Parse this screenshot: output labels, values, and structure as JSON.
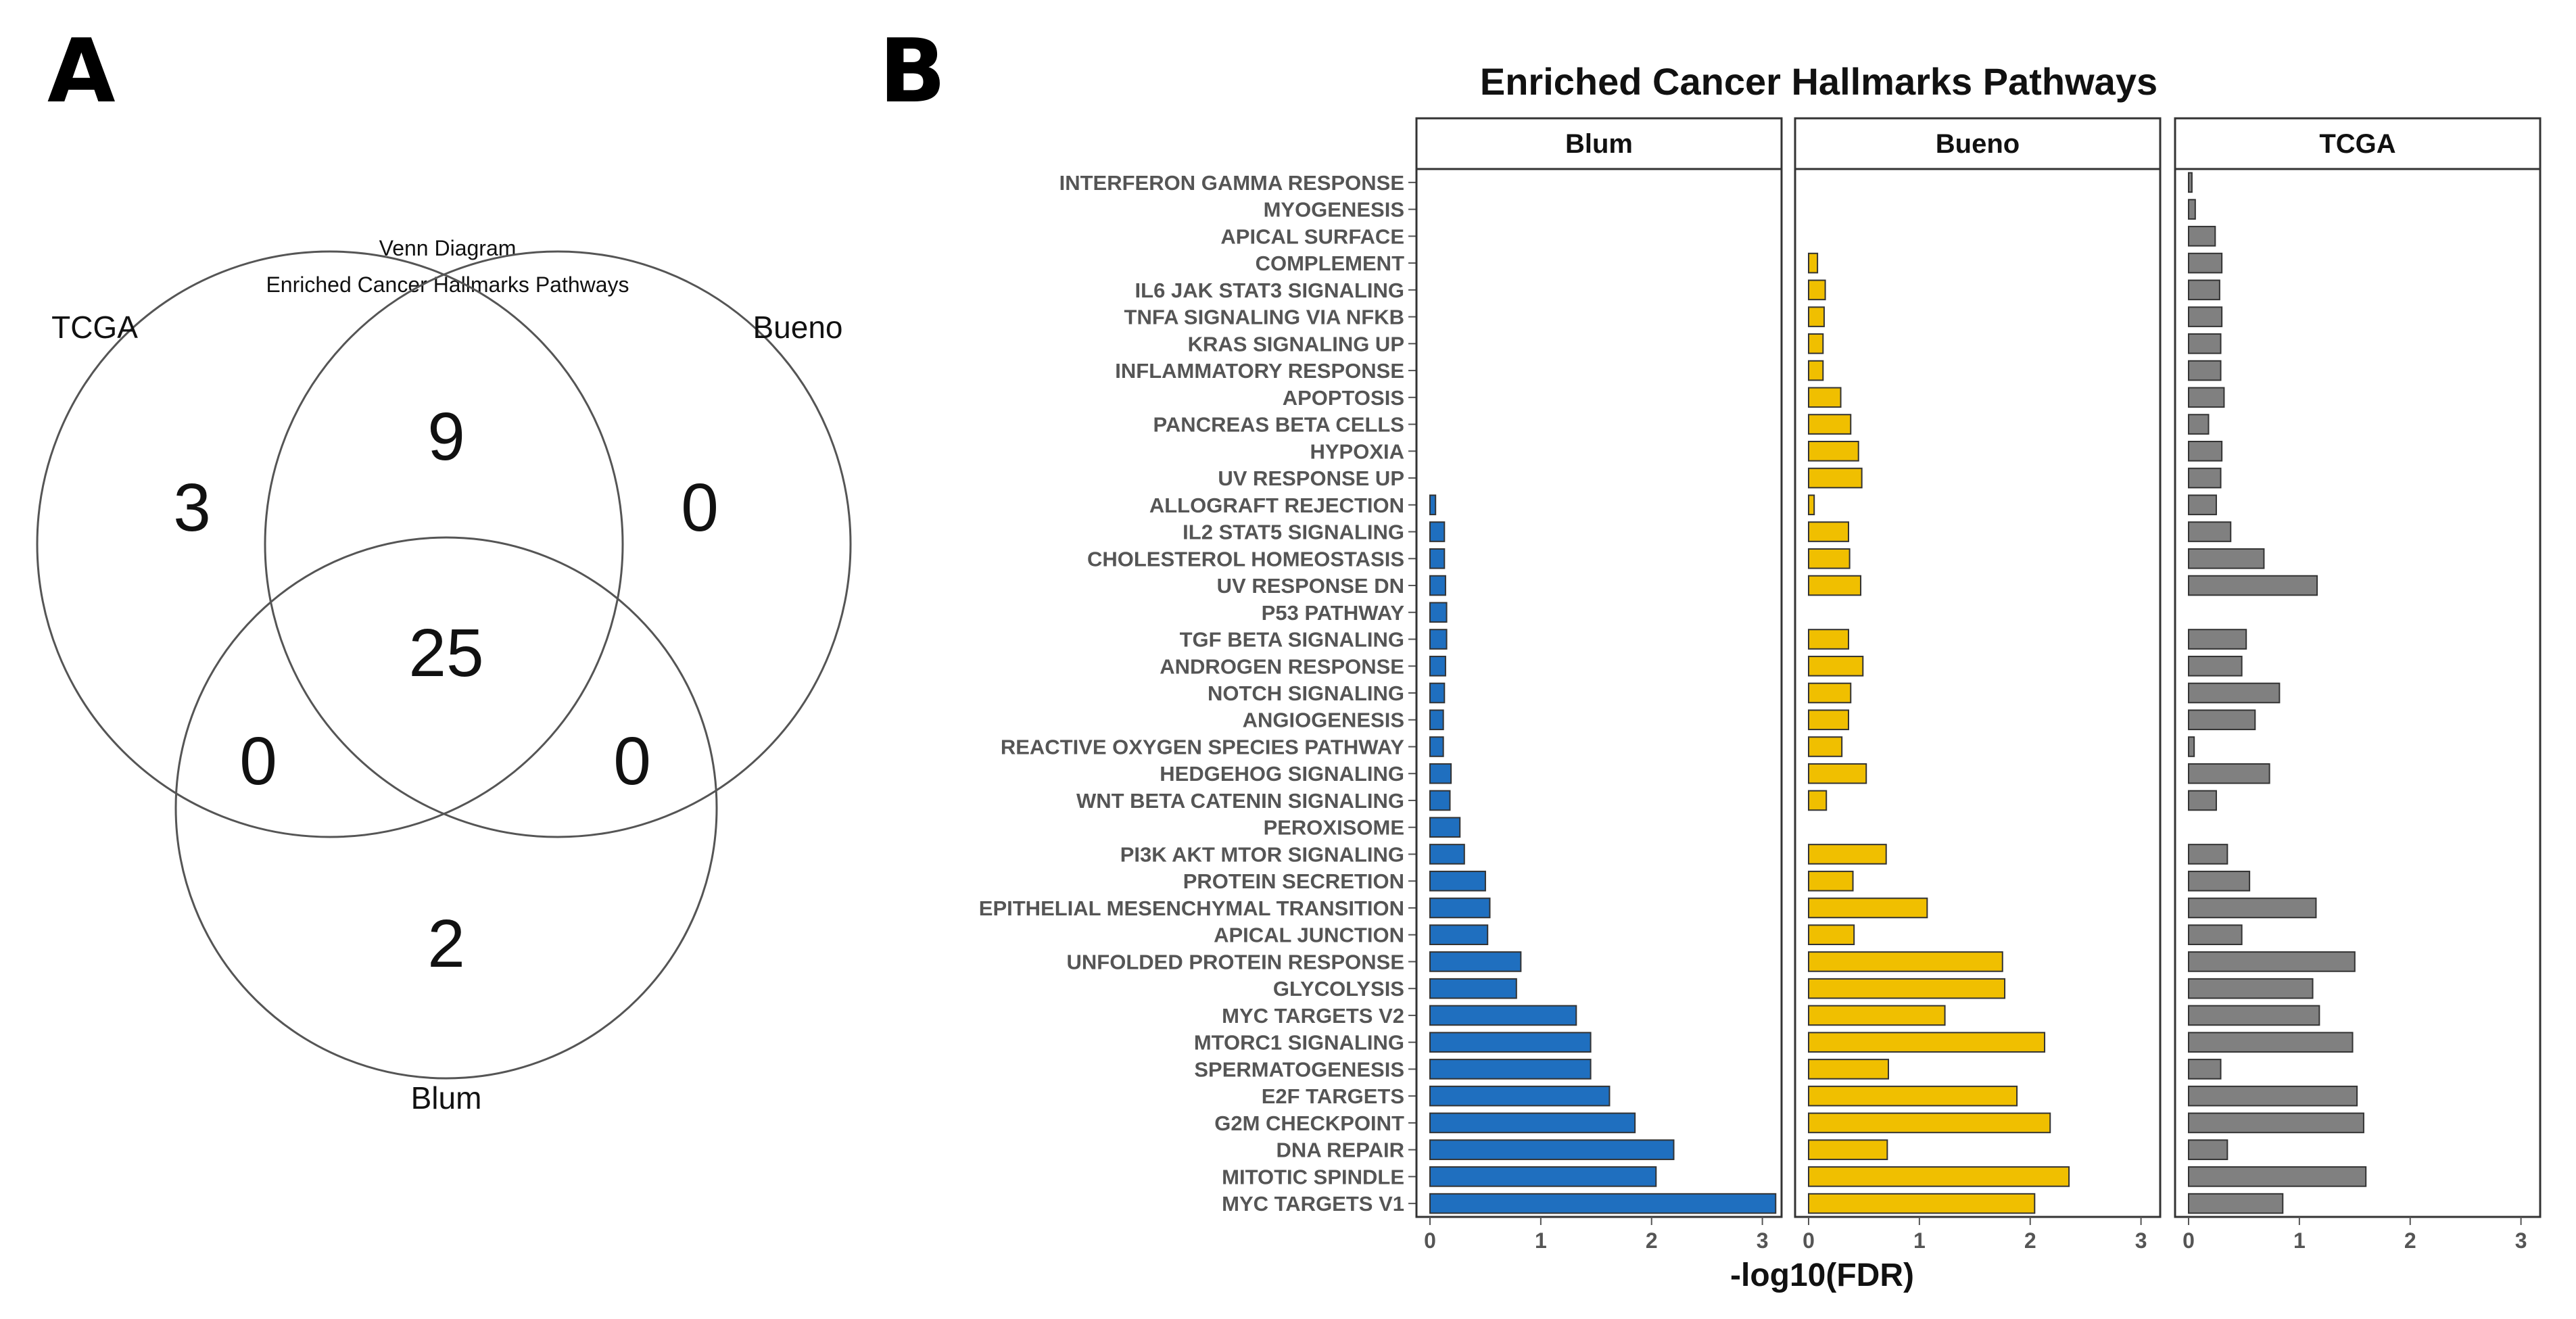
{
  "panel_a": {
    "letter": "A",
    "title_line1": "Venn Diagram",
    "title_line2": "Enriched Cancer Hallmarks Pathways",
    "sets": [
      "TCGA",
      "Bueno",
      "Blum"
    ],
    "regions": {
      "tcga_only": "3",
      "tcga_bueno": "9",
      "bueno_only": "0",
      "all_three": "25",
      "tcga_blum": "0",
      "bueno_blum": "0",
      "blum_only": "2"
    }
  },
  "panel_b": {
    "letter": "B"
  },
  "chart_data": {
    "type": "bar",
    "orientation": "horizontal",
    "title": "Enriched Cancer Hallmarks Pathways",
    "xlabel": "-log10(FDR)",
    "ylabel": "",
    "xlim": [
      0,
      3.1
    ],
    "xticks": [
      0,
      1,
      2,
      3
    ],
    "categories": [
      "INTERFERON GAMMA RESPONSE",
      "MYOGENESIS",
      "APICAL SURFACE",
      "COMPLEMENT",
      "IL6 JAK STAT3 SIGNALING",
      "TNFA SIGNALING VIA NFKB",
      "KRAS SIGNALING UP",
      "INFLAMMATORY RESPONSE",
      "APOPTOSIS",
      "PANCREAS BETA CELLS",
      "HYPOXIA",
      "UV RESPONSE UP",
      "ALLOGRAFT REJECTION",
      "IL2 STAT5 SIGNALING",
      "CHOLESTEROL HOMEOSTASIS",
      "UV RESPONSE DN",
      "P53 PATHWAY",
      "TGF BETA SIGNALING",
      "ANDROGEN RESPONSE",
      "NOTCH SIGNALING",
      "ANGIOGENESIS",
      "REACTIVE OXYGEN SPECIES PATHWAY",
      "HEDGEHOG SIGNALING",
      "WNT BETA CATENIN SIGNALING",
      "PEROXISOME",
      "PI3K AKT MTOR SIGNALING",
      "PROTEIN SECRETION",
      "EPITHELIAL MESENCHYMAL TRANSITION",
      "APICAL JUNCTION",
      "UNFOLDED PROTEIN RESPONSE",
      "GLYCOLYSIS",
      "MYC TARGETS V2",
      "MTORC1 SIGNALING",
      "SPERMATOGENESIS",
      "E2F TARGETS",
      "G2M CHECKPOINT",
      "DNA REPAIR",
      "MITOTIC SPINDLE",
      "MYC TARGETS V1"
    ],
    "series": [
      {
        "name": "Blum",
        "color": "#1f6fbf",
        "values": [
          null,
          null,
          null,
          null,
          null,
          null,
          null,
          null,
          null,
          null,
          null,
          null,
          0.05,
          0.13,
          0.13,
          0.14,
          0.15,
          0.15,
          0.14,
          0.13,
          0.12,
          0.12,
          0.19,
          0.18,
          0.27,
          0.31,
          0.5,
          0.54,
          0.52,
          0.82,
          0.78,
          1.32,
          1.45,
          1.45,
          1.62,
          1.85,
          2.2,
          2.04,
          3.12
        ]
      },
      {
        "name": "Bueno",
        "color": "#f0bf00",
        "values": [
          null,
          null,
          null,
          0.08,
          0.15,
          0.14,
          0.13,
          0.13,
          0.29,
          0.38,
          0.45,
          0.48,
          0.05,
          0.36,
          0.37,
          0.47,
          null,
          0.36,
          0.49,
          0.38,
          0.36,
          0.3,
          0.52,
          0.16,
          null,
          0.7,
          0.4,
          1.07,
          0.41,
          1.75,
          1.77,
          1.23,
          2.13,
          0.72,
          1.88,
          2.18,
          0.71,
          2.35,
          2.04
        ]
      },
      {
        "name": "TCGA",
        "color": "#808080",
        "values": [
          0.03,
          0.06,
          0.24,
          0.3,
          0.28,
          0.3,
          0.29,
          0.29,
          0.32,
          0.18,
          0.3,
          0.29,
          0.25,
          0.38,
          0.68,
          1.16,
          null,
          0.52,
          0.48,
          0.82,
          0.6,
          0.05,
          0.73,
          0.25,
          null,
          0.35,
          0.55,
          1.15,
          0.48,
          1.5,
          1.12,
          1.18,
          1.48,
          0.29,
          1.52,
          1.58,
          0.35,
          1.6,
          0.85
        ]
      }
    ],
    "facets": [
      "Blum",
      "Bueno",
      "TCGA"
    ]
  }
}
